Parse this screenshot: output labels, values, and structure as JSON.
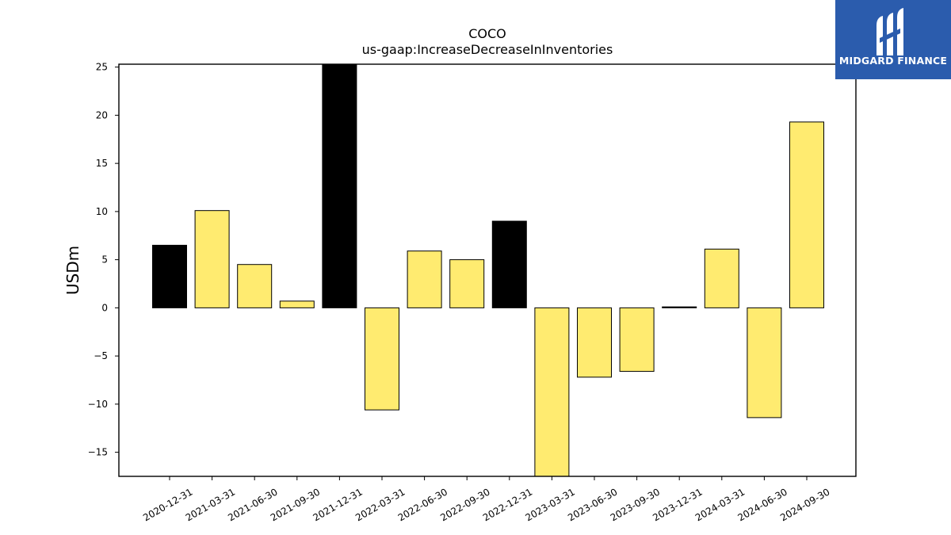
{
  "chart_data": {
    "type": "bar",
    "title": "COCO",
    "subtitle": "us-gaap:IncreaseDecreaseInInventories",
    "xlabel": "",
    "ylabel": "USDm",
    "ylim": [
      -17.5,
      25.3
    ],
    "yticks": [
      25,
      20,
      15,
      10,
      5,
      0,
      -5,
      -10,
      -15
    ],
    "ytick_labels": [
      "25",
      "20",
      "15",
      "10",
      "5",
      "0",
      "−5",
      "−10",
      "−15"
    ],
    "categories": [
      "2020-12-31",
      "2021-03-31",
      "2021-06-30",
      "2021-09-30",
      "2021-12-31",
      "2022-03-31",
      "2022-06-30",
      "2022-09-30",
      "2022-12-31",
      "2023-03-31",
      "2023-06-30",
      "2023-09-30",
      "2023-12-31",
      "2024-03-31",
      "2024-06-30",
      "2024-09-30"
    ],
    "values": [
      6.5,
      10.1,
      4.5,
      0.7,
      25.5,
      -10.6,
      5.9,
      5.0,
      9.0,
      -18.0,
      -7.2,
      -6.6,
      0.1,
      6.1,
      -11.4,
      19.3
    ],
    "bar_colors": [
      "#000000",
      "#ffeb70",
      "#ffeb70",
      "#ffeb70",
      "#000000",
      "#ffeb70",
      "#ffeb70",
      "#ffeb70",
      "#000000",
      "#ffeb70",
      "#ffeb70",
      "#ffeb70",
      "#000000",
      "#ffeb70",
      "#ffeb70",
      "#ffeb70"
    ],
    "grid": false,
    "legend": "none"
  },
  "logo": {
    "text": "MIDGARD FINANCE",
    "background": "#2b5cad",
    "icon": "midgard-logo-icon"
  }
}
